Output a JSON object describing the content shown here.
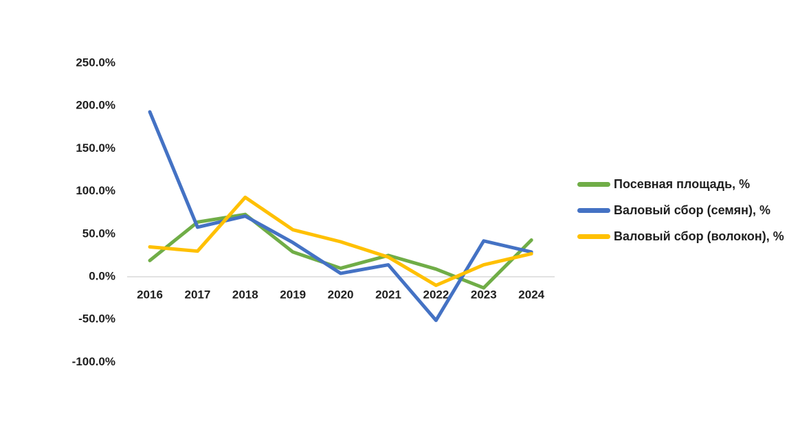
{
  "chart_data": {
    "type": "line",
    "title": "",
    "xlabel": "",
    "ylabel": "",
    "categories": [
      "2016",
      "2017",
      "2018",
      "2019",
      "2020",
      "2021",
      "2022",
      "2023",
      "2024"
    ],
    "series": [
      {
        "name": "Посевная площадь, %",
        "color": "#70AD47",
        "values": [
          19,
          64,
          73,
          29,
          10,
          25,
          9,
          -13,
          43
        ]
      },
      {
        "name": "Валовый сбор (семян), %",
        "color": "#4472C4",
        "values": [
          193,
          58,
          71,
          40,
          4,
          14,
          -51,
          42,
          29
        ]
      },
      {
        "name": "Валовый сбор (волокон), %",
        "color": "#FFC000",
        "values": [
          35,
          30,
          93,
          55,
          41,
          23,
          -10,
          14,
          27
        ]
      }
    ],
    "y_ticks": [
      {
        "value": 250,
        "label": "250.0%"
      },
      {
        "value": 200,
        "label": "200.0%"
      },
      {
        "value": 150,
        "label": "150.0%"
      },
      {
        "value": 100,
        "label": "100.0%"
      },
      {
        "value": 50,
        "label": "50.0%"
      },
      {
        "value": 0,
        "label": "0.0%"
      },
      {
        "value": -50,
        "label": "-50.0%"
      },
      {
        "value": -100,
        "label": "-100.0%"
      }
    ],
    "ylim": [
      -100,
      250
    ],
    "grid": "only zero line",
    "gridline_color": "#D9D9D9",
    "legend_position": "right",
    "text_color": "#1f1f1f",
    "background_color": "#ffffff"
  }
}
